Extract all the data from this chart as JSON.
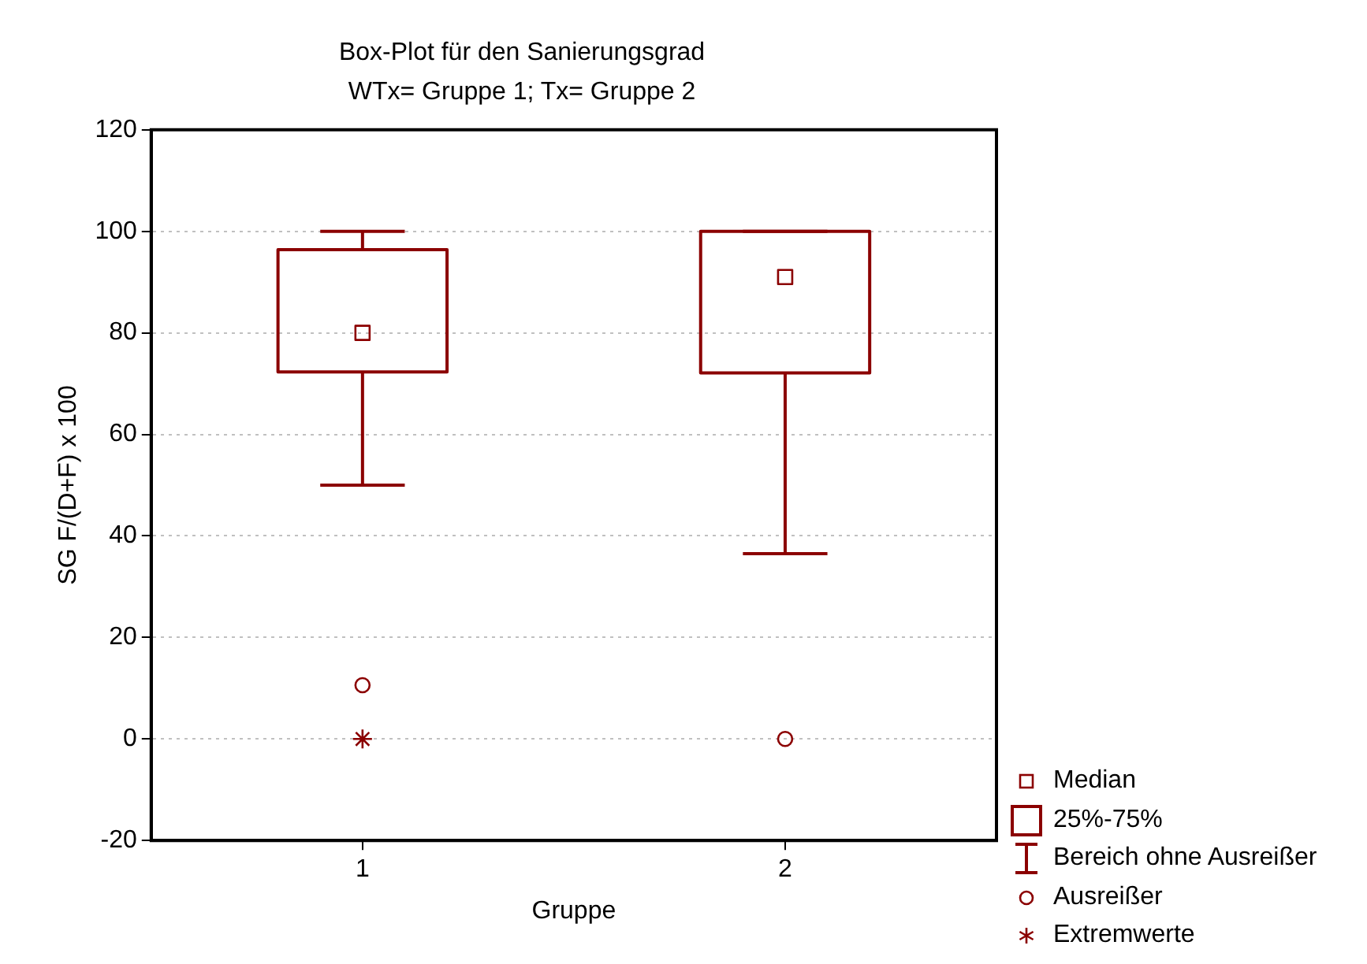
{
  "chart_data": {
    "type": "box",
    "title": "Box-Plot für den Sanierungsgrad",
    "subtitle": "WTx= Gruppe 1; Tx= Gruppe 2",
    "xlabel": "Gruppe",
    "ylabel": "SG F/(D+F) x 100",
    "categories": [
      "1",
      "2"
    ],
    "ylim": [
      -20,
      120
    ],
    "yticks": [
      -20,
      0,
      20,
      40,
      60,
      80,
      100,
      120
    ],
    "grid": "y",
    "legend": "bottom right",
    "annotations": [
      "Median",
      "25%-75%",
      "Bereich ohne Ausreißer",
      "Ausreißer"
    ],
    "series": [
      {
        "type": "box",
        "color": "#8b0000",
        "boxes": [
          {
            "low": 50,
            "q1": 72.3,
            "median": 80,
            "q3": 96.4,
            "high": 100,
            "outliers": [
              10.6
            ]
          },
          {
            "low": 36.5,
            "q1": 72.1,
            "median": 91,
            "q3": 100,
            "high": 100,
            "outliers": [
              0
            ]
          }
        ]
      },
      {
        "type": "scatter",
        "name": "Extremwerte",
        "color": "#8b0000",
        "marker": "cross",
        "x": [
          "1"
        ],
        "values": [
          0
        ]
      }
    ]
  }
}
